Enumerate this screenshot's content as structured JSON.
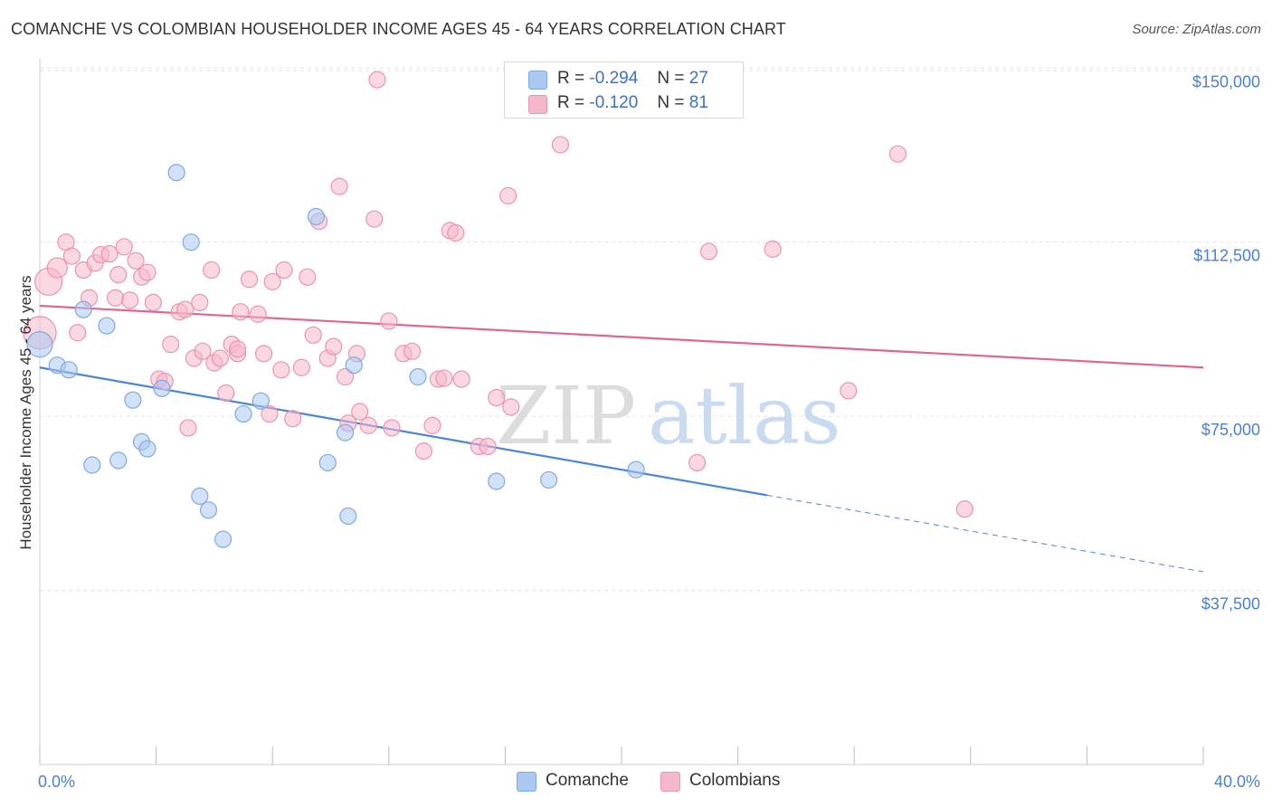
{
  "header": {
    "title": "COMANCHE VS COLOMBIAN HOUSEHOLDER INCOME AGES 45 - 64 YEARS CORRELATION CHART",
    "source": "Source: ZipAtlas.com"
  },
  "watermark": {
    "zip": "ZIP",
    "atlas": "atlas"
  },
  "legend": {
    "rows": [
      {
        "r_label": "R =",
        "r_value": "-0.294",
        "n_label": "N =",
        "n_value": "27",
        "color": "#aac8f2"
      },
      {
        "r_label": "R =",
        "r_value": "-0.120",
        "n_label": "N =",
        "n_value": "81",
        "color": "#f5b8ca"
      }
    ]
  },
  "bottom_legend": {
    "items": [
      {
        "label": "Comanche",
        "color": "#aac8f2"
      },
      {
        "label": "Colombians",
        "color": "#f5b8ca"
      }
    ]
  },
  "chart_data": {
    "type": "scatter",
    "ylabel": "Householder Income Ages 45 - 64 years",
    "xlim": [
      0,
      40
    ],
    "ylim": [
      0,
      152000
    ],
    "y_ticks": [
      {
        "value": 37500,
        "label": "$37,500"
      },
      {
        "value": 75000,
        "label": "$75,000"
      },
      {
        "value": 112500,
        "label": "$112,500"
      },
      {
        "value": 150000,
        "label": "$150,000"
      }
    ],
    "x_tick_labels": [
      {
        "value": 0,
        "label": "0.0%"
      },
      {
        "value": 40,
        "label": "40.0%"
      }
    ],
    "grid": "dashed horizontal",
    "series": [
      {
        "name": "Comanche",
        "color": "#4a86d8",
        "fill": "#aac8f2",
        "trend": {
          "x0": 0,
          "y0": 85500,
          "x1": 25,
          "y1": 58000,
          "dash_to_x": 40,
          "dash_to_y": 41500
        },
        "points": [
          [
            0,
            90500,
            14
          ],
          [
            0.6,
            86000,
            9
          ],
          [
            1.0,
            85000,
            9
          ],
          [
            1.5,
            98000,
            9
          ],
          [
            1.8,
            64500,
            9
          ],
          [
            2.3,
            94500,
            9
          ],
          [
            2.7,
            65500,
            9
          ],
          [
            3.2,
            78500,
            9
          ],
          [
            3.5,
            69500,
            9
          ],
          [
            3.7,
            68000,
            9
          ],
          [
            4.2,
            81000,
            9
          ],
          [
            4.7,
            127500,
            9
          ],
          [
            5.2,
            112500,
            9
          ],
          [
            5.5,
            57800,
            9
          ],
          [
            5.8,
            54800,
            9
          ],
          [
            6.3,
            48500,
            9
          ],
          [
            7.0,
            75500,
            9
          ],
          [
            7.6,
            78300,
            9
          ],
          [
            9.5,
            118000,
            9
          ],
          [
            9.9,
            65000,
            9
          ],
          [
            10.5,
            71500,
            9
          ],
          [
            10.6,
            53500,
            9
          ],
          [
            10.8,
            86000,
            9
          ],
          [
            13.0,
            83500,
            9
          ],
          [
            15.7,
            61000,
            9
          ],
          [
            17.5,
            61300,
            9
          ],
          [
            20.5,
            63500,
            9
          ]
        ]
      },
      {
        "name": "Colombians",
        "color": "#e0668f",
        "fill": "#f5b8ca",
        "trend": {
          "x0": 0,
          "y0": 98800,
          "x1": 40,
          "y1": 85500
        },
        "points": [
          [
            0,
            93000,
            18
          ],
          [
            0.3,
            104000,
            15
          ],
          [
            0.6,
            107000,
            11
          ],
          [
            0.9,
            112500,
            9
          ],
          [
            1.1,
            109500,
            9
          ],
          [
            1.3,
            93000,
            9
          ],
          [
            1.5,
            106500,
            9
          ],
          [
            1.7,
            100500,
            9
          ],
          [
            1.9,
            108000,
            9
          ],
          [
            2.1,
            109800,
            9
          ],
          [
            2.4,
            110000,
            9
          ],
          [
            2.6,
            100500,
            9
          ],
          [
            2.7,
            105500,
            9
          ],
          [
            2.9,
            111500,
            9
          ],
          [
            3.1,
            100000,
            9
          ],
          [
            3.3,
            108500,
            9
          ],
          [
            3.5,
            105000,
            9
          ],
          [
            3.7,
            106000,
            9
          ],
          [
            3.9,
            99500,
            9
          ],
          [
            4.1,
            83000,
            9
          ],
          [
            4.3,
            82500,
            9
          ],
          [
            4.5,
            90500,
            9
          ],
          [
            4.8,
            97500,
            9
          ],
          [
            5.0,
            98000,
            9
          ],
          [
            5.1,
            72500,
            9
          ],
          [
            5.3,
            87500,
            9
          ],
          [
            5.5,
            99500,
            9
          ],
          [
            5.6,
            89000,
            9
          ],
          [
            5.9,
            106500,
            9
          ],
          [
            6.0,
            86500,
            9
          ],
          [
            6.2,
            87500,
            9
          ],
          [
            6.4,
            80000,
            9
          ],
          [
            6.6,
            90500,
            9
          ],
          [
            6.8,
            88500,
            9
          ],
          [
            6.9,
            97500,
            9
          ],
          [
            7.2,
            104500,
            9
          ],
          [
            7.5,
            97000,
            9
          ],
          [
            7.7,
            88500,
            9
          ],
          [
            7.9,
            75500,
            9
          ],
          [
            8.0,
            104000,
            9
          ],
          [
            8.3,
            85000,
            9
          ],
          [
            8.4,
            106500,
            9
          ],
          [
            8.7,
            74500,
            9
          ],
          [
            9.0,
            85500,
            9
          ],
          [
            9.2,
            105000,
            9
          ],
          [
            9.4,
            92500,
            9
          ],
          [
            9.6,
            117000,
            9
          ],
          [
            9.9,
            87500,
            9
          ],
          [
            10.1,
            90000,
            9
          ],
          [
            10.3,
            124500,
            9
          ],
          [
            10.5,
            83500,
            9
          ],
          [
            10.6,
            73500,
            9
          ],
          [
            10.9,
            88500,
            9
          ],
          [
            11.0,
            76000,
            9
          ],
          [
            11.3,
            73000,
            9
          ],
          [
            11.5,
            117500,
            9
          ],
          [
            11.6,
            147500,
            9
          ],
          [
            12.0,
            95500,
            9
          ],
          [
            12.1,
            72500,
            9
          ],
          [
            12.5,
            88500,
            9
          ],
          [
            12.8,
            89000,
            9
          ],
          [
            13.2,
            67500,
            9
          ],
          [
            13.5,
            73000,
            9
          ],
          [
            13.7,
            83000,
            9
          ],
          [
            14.1,
            115000,
            9
          ],
          [
            14.3,
            114500,
            9
          ],
          [
            14.5,
            83000,
            9
          ],
          [
            15.1,
            68500,
            9
          ],
          [
            15.4,
            68500,
            9
          ],
          [
            15.7,
            79000,
            9
          ],
          [
            16.1,
            122500,
            9
          ],
          [
            16.2,
            77000,
            9
          ],
          [
            17.9,
            133500,
            9
          ],
          [
            22.6,
            65000,
            9
          ],
          [
            23.0,
            110500,
            9
          ],
          [
            25.2,
            111000,
            9
          ],
          [
            27.8,
            80500,
            9
          ],
          [
            29.5,
            131500,
            9
          ],
          [
            31.8,
            55000,
            9
          ],
          [
            13.9,
            83200,
            9
          ],
          [
            6.8,
            89500,
            9
          ]
        ]
      }
    ]
  }
}
